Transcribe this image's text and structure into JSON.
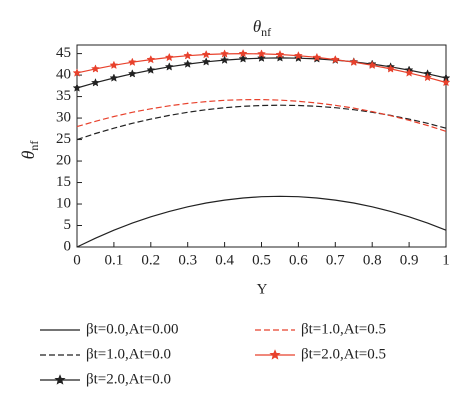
{
  "chart_data": {
    "type": "line",
    "title": "θ",
    "title_subscript": "nf",
    "y_label": "θ",
    "y_label_subscript": "nf",
    "x_label": "Y",
    "x": [
      0,
      0.05,
      0.1,
      0.15,
      0.2,
      0.25,
      0.3,
      0.35,
      0.4,
      0.45,
      0.5,
      0.55,
      0.6,
      0.65,
      0.7,
      0.75,
      0.8,
      0.85,
      0.9,
      0.95,
      1
    ],
    "xlim": [
      0,
      1
    ],
    "xticks": [
      0,
      0.1,
      0.2,
      0.3,
      0.4,
      0.5,
      0.6,
      0.7,
      0.8,
      0.9,
      1
    ],
    "ylim": [
      0,
      47
    ],
    "yticks": [
      0,
      5,
      10,
      15,
      20,
      25,
      30,
      35,
      40,
      45
    ],
    "series": [
      {
        "name": "βt=0.0,At=0.00",
        "color": "#222222",
        "dash": false,
        "marker": false,
        "values": [
          0.0,
          2.05,
          3.9,
          5.56,
          7.02,
          8.29,
          9.36,
          10.24,
          10.92,
          11.41,
          11.7,
          11.8,
          11.7,
          11.41,
          10.92,
          10.24,
          9.36,
          8.29,
          7.02,
          5.56,
          3.9
        ]
      },
      {
        "name": "βt=1.0,At=0.0",
        "color": "#222222",
        "dash": true,
        "marker": false,
        "values": [
          25,
          26.4,
          27.65,
          28.78,
          29.77,
          30.62,
          31.35,
          31.94,
          32.41,
          32.74,
          32.93,
          33,
          32.93,
          32.74,
          32.41,
          31.94,
          31.35,
          30.62,
          29.77,
          28.78,
          27.65
        ]
      },
      {
        "name": "βt=2.0,At=0.0",
        "color": "#222222",
        "dash": false,
        "marker": true,
        "values": [
          37,
          38.22,
          39.32,
          40.3,
          41.17,
          41.92,
          42.56,
          43.08,
          43.48,
          43.77,
          43.94,
          44,
          43.94,
          43.77,
          43.48,
          43.08,
          42.56,
          41.92,
          41.17,
          40.3,
          39.32
        ]
      },
      {
        "name": "βt=1.0,At=0.5",
        "color": "#e8412c",
        "dash": true,
        "marker": false,
        "values": [
          28.01,
          29.25,
          30.36,
          31.33,
          32.16,
          32.86,
          33.42,
          33.84,
          34.13,
          34.28,
          34.29,
          34.17,
          33.91,
          33.51,
          32.98,
          32.31,
          31.5,
          30.56,
          29.48,
          28.27,
          26.92
        ]
      },
      {
        "name": "βt=2.0,At=0.5",
        "color": "#e8412c",
        "dash": false,
        "marker": true,
        "values": [
          40.5,
          41.45,
          42.28,
          43,
          43.61,
          44.11,
          44.5,
          44.78,
          44.94,
          45,
          44.94,
          44.78,
          44.5,
          44.11,
          43.61,
          43,
          42.28,
          41.45,
          40.5,
          39.45,
          38.28
        ]
      }
    ]
  }
}
